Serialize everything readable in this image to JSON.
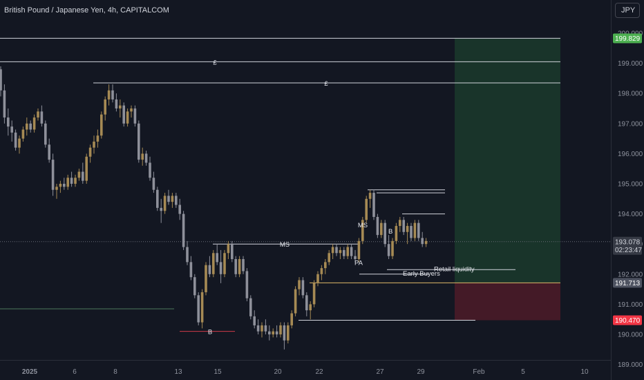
{
  "header": {
    "title": "British Pound / Japanese Yen, 4h, CAPITALCOM",
    "currency_button": "JPY"
  },
  "colors": {
    "background": "#131722",
    "bull": "#a68a54",
    "bear": "#8e909a",
    "line": "#d1d4dc",
    "profit_zone": "#1b3a2b",
    "loss_zone": "#4a1b28",
    "target_tag": "#4caf50",
    "stop_tag": "#f23645",
    "current_tag": "#363a45"
  },
  "chart_data": {
    "type": "candlestick",
    "symbol": "GBPJPY",
    "timeframe": "4h",
    "ylim": [
      188.8,
      200.3
    ],
    "y_ticks": [
      "189.000",
      "190.000",
      "191.000",
      "192.000",
      "193.000",
      "194.000",
      "195.000",
      "196.000",
      "197.000",
      "198.000",
      "199.000",
      "200.000"
    ],
    "x_ticks": [
      "2025",
      "6",
      "8",
      "13",
      "15",
      "20",
      "22",
      "27",
      "29",
      "Feb",
      "5",
      "10"
    ],
    "price_tags": [
      {
        "role": "target",
        "value": "199.829"
      },
      {
        "role": "current",
        "value": "193.078",
        "countdown": "02:23:47"
      },
      {
        "role": "entry",
        "value": "191.713"
      },
      {
        "role": "stop",
        "value": "190.470"
      }
    ],
    "candles": [
      [
        198.8,
        198.9,
        197.9,
        198.1
      ],
      [
        198.1,
        198.3,
        197.0,
        197.2
      ],
      [
        197.2,
        197.5,
        196.6,
        196.9
      ],
      [
        196.9,
        197.1,
        196.4,
        196.7
      ],
      [
        196.7,
        196.8,
        196.1,
        196.2
      ],
      [
        196.2,
        196.6,
        196.0,
        196.5
      ],
      [
        196.5,
        196.9,
        196.4,
        196.8
      ],
      [
        196.8,
        197.2,
        196.6,
        197.0
      ],
      [
        197.0,
        197.1,
        196.7,
        196.8
      ],
      [
        196.8,
        197.3,
        196.7,
        197.2
      ],
      [
        197.2,
        197.5,
        197.1,
        197.4
      ],
      [
        197.4,
        197.6,
        196.9,
        197.0
      ],
      [
        197.0,
        197.1,
        196.2,
        196.3
      ],
      [
        196.3,
        196.5,
        195.7,
        195.8
      ],
      [
        195.8,
        196.0,
        194.6,
        194.8
      ],
      [
        194.8,
        195.0,
        194.5,
        194.9
      ],
      [
        194.9,
        195.1,
        194.7,
        195.0
      ],
      [
        195.0,
        195.2,
        194.8,
        194.9
      ],
      [
        194.9,
        195.3,
        194.8,
        195.2
      ],
      [
        195.2,
        195.4,
        194.9,
        195.0
      ],
      [
        195.0,
        195.3,
        194.9,
        195.2
      ],
      [
        195.2,
        195.5,
        195.1,
        195.4
      ],
      [
        195.4,
        195.7,
        195.0,
        195.1
      ],
      [
        195.1,
        196.0,
        195.0,
        195.9
      ],
      [
        195.9,
        196.3,
        195.7,
        196.2
      ],
      [
        196.2,
        196.6,
        196.0,
        196.4
      ],
      [
        196.4,
        196.8,
        196.2,
        196.6
      ],
      [
        196.6,
        197.4,
        196.5,
        197.3
      ],
      [
        197.3,
        197.9,
        197.1,
        197.8
      ],
      [
        197.8,
        198.3,
        197.6,
        198.1
      ],
      [
        198.1,
        198.3,
        197.7,
        197.8
      ],
      [
        197.8,
        198.0,
        197.4,
        197.5
      ],
      [
        197.5,
        197.8,
        197.2,
        197.6
      ],
      [
        197.6,
        197.7,
        196.9,
        197.0
      ],
      [
        197.0,
        197.5,
        196.9,
        197.4
      ],
      [
        197.4,
        197.6,
        197.2,
        197.5
      ],
      [
        197.5,
        197.6,
        196.9,
        197.0
      ],
      [
        197.0,
        197.1,
        195.7,
        195.8
      ],
      [
        195.8,
        196.2,
        195.6,
        196.0
      ],
      [
        196.0,
        196.1,
        195.6,
        195.7
      ],
      [
        195.7,
        195.9,
        195.1,
        195.2
      ],
      [
        195.2,
        195.4,
        194.7,
        194.8
      ],
      [
        194.8,
        194.9,
        194.1,
        194.2
      ],
      [
        194.2,
        194.5,
        193.7,
        194.1
      ],
      [
        194.1,
        194.7,
        194.0,
        194.6
      ],
      [
        194.6,
        194.8,
        194.3,
        194.4
      ],
      [
        194.4,
        194.7,
        194.2,
        194.6
      ],
      [
        194.6,
        194.7,
        194.2,
        194.3
      ],
      [
        194.3,
        194.5,
        193.8,
        194.0
      ],
      [
        194.0,
        194.1,
        192.8,
        192.9
      ],
      [
        192.9,
        193.1,
        192.3,
        192.4
      ],
      [
        192.4,
        192.6,
        191.8,
        191.9
      ],
      [
        191.9,
        192.0,
        191.2,
        191.3
      ],
      [
        191.3,
        191.4,
        190.3,
        190.4
      ],
      [
        190.4,
        191.5,
        190.2,
        191.4
      ],
      [
        191.4,
        192.4,
        191.3,
        192.3
      ],
      [
        192.3,
        192.6,
        191.9,
        192.0
      ],
      [
        192.0,
        192.8,
        191.9,
        192.7
      ],
      [
        192.7,
        193.0,
        192.3,
        192.4
      ],
      [
        192.4,
        192.8,
        191.7,
        192.0
      ],
      [
        192.0,
        192.8,
        191.9,
        192.7
      ],
      [
        192.7,
        193.1,
        192.5,
        193.0
      ],
      [
        193.0,
        193.1,
        192.4,
        192.5
      ],
      [
        192.5,
        192.6,
        191.9,
        192.0
      ],
      [
        192.0,
        192.6,
        191.9,
        192.5
      ],
      [
        192.5,
        192.6,
        192.0,
        192.1
      ],
      [
        192.1,
        192.2,
        191.1,
        191.2
      ],
      [
        191.2,
        191.3,
        190.5,
        190.6
      ],
      [
        190.6,
        190.8,
        190.2,
        190.3
      ],
      [
        190.3,
        190.5,
        190.0,
        190.1
      ],
      [
        190.1,
        190.4,
        189.9,
        190.3
      ],
      [
        190.3,
        190.5,
        190.0,
        190.1
      ],
      [
        190.1,
        190.3,
        189.8,
        190.0
      ],
      [
        190.0,
        190.2,
        189.9,
        190.1
      ],
      [
        190.1,
        190.3,
        189.9,
        190.0
      ],
      [
        190.0,
        190.4,
        189.9,
        190.3
      ],
      [
        190.3,
        190.4,
        189.5,
        189.8
      ],
      [
        189.8,
        190.4,
        189.7,
        190.3
      ],
      [
        190.3,
        190.8,
        190.2,
        190.7
      ],
      [
        190.7,
        191.6,
        190.6,
        191.5
      ],
      [
        191.5,
        191.9,
        191.3,
        191.8
      ],
      [
        191.8,
        191.9,
        191.2,
        191.3
      ],
      [
        191.3,
        191.4,
        190.6,
        190.8
      ],
      [
        190.8,
        191.1,
        190.5,
        191.0
      ],
      [
        191.0,
        191.8,
        190.9,
        191.7
      ],
      [
        191.7,
        192.1,
        191.6,
        192.0
      ],
      [
        192.0,
        192.3,
        191.8,
        192.2
      ],
      [
        192.2,
        192.5,
        192.0,
        192.4
      ],
      [
        192.4,
        192.8,
        192.3,
        192.7
      ],
      [
        192.7,
        193.0,
        192.5,
        192.9
      ],
      [
        192.9,
        193.0,
        192.6,
        192.7
      ],
      [
        192.7,
        192.9,
        192.5,
        192.8
      ],
      [
        192.8,
        192.9,
        192.5,
        192.6
      ],
      [
        192.6,
        193.0,
        192.5,
        192.9
      ],
      [
        192.9,
        193.0,
        192.5,
        192.6
      ],
      [
        192.6,
        192.8,
        192.4,
        192.5
      ],
      [
        192.5,
        193.2,
        192.4,
        193.1
      ],
      [
        193.1,
        193.9,
        193.0,
        193.8
      ],
      [
        193.8,
        194.6,
        193.7,
        194.5
      ],
      [
        194.5,
        194.8,
        194.2,
        194.7
      ],
      [
        194.7,
        194.8,
        193.8,
        193.9
      ],
      [
        193.9,
        194.0,
        193.2,
        193.3
      ],
      [
        193.3,
        193.8,
        193.2,
        193.7
      ],
      [
        193.7,
        193.8,
        192.9,
        193.0
      ],
      [
        193.0,
        193.3,
        192.5,
        192.6
      ],
      [
        192.6,
        193.2,
        192.5,
        193.1
      ],
      [
        193.1,
        193.7,
        193.0,
        193.6
      ],
      [
        193.6,
        193.9,
        193.4,
        193.8
      ],
      [
        193.8,
        193.9,
        193.3,
        193.4
      ],
      [
        193.4,
        193.7,
        193.0,
        193.6
      ],
      [
        193.6,
        193.7,
        193.1,
        193.2
      ],
      [
        193.2,
        193.8,
        193.1,
        193.7
      ],
      [
        193.7,
        193.8,
        193.1,
        193.2
      ],
      [
        193.2,
        193.4,
        192.9,
        193.0
      ],
      [
        193.0,
        193.2,
        192.9,
        193.1
      ]
    ],
    "drawings": [
      {
        "label": "£"
      },
      {
        "label": "£"
      },
      {
        "label": "MS"
      },
      {
        "label": "MS"
      },
      {
        "label": "B"
      },
      {
        "label": "B"
      },
      {
        "label": "PA"
      },
      {
        "label": "Early Buyers"
      },
      {
        "label": "Retail liquidity"
      }
    ]
  }
}
